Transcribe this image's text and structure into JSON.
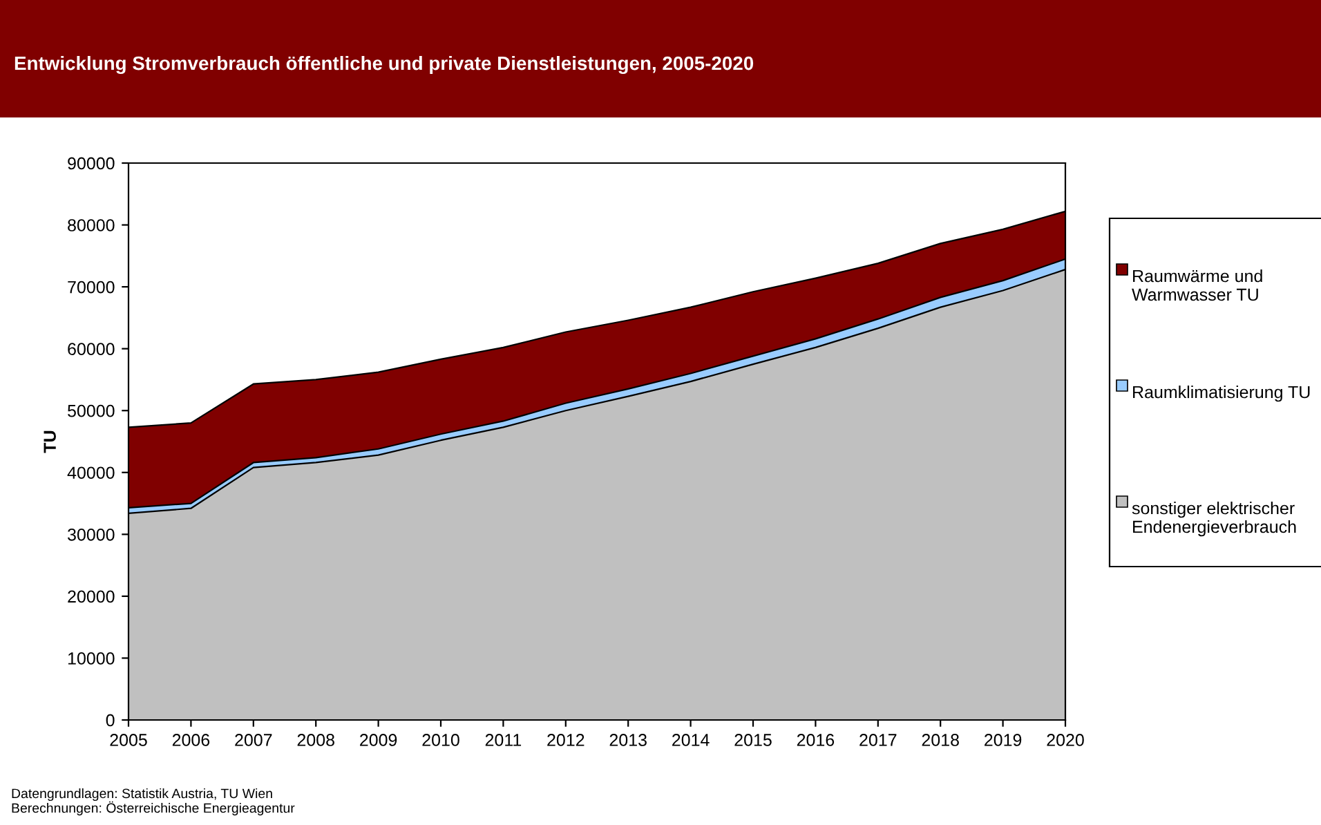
{
  "chart_data": {
    "type": "area",
    "stacked": true,
    "title": "Entwicklung Stromverbrauch öffentliche und private Dienstleistungen, 2005-2020",
    "ylabel": "TU",
    "x": [
      2005,
      2006,
      2007,
      2008,
      2009,
      2010,
      2011,
      2012,
      2013,
      2014,
      2015,
      2016,
      2017,
      2018,
      2019,
      2020
    ],
    "xlim": [
      2005,
      2020
    ],
    "xticks": [
      2005,
      2006,
      2007,
      2008,
      2009,
      2010,
      2011,
      2012,
      2013,
      2014,
      2015,
      2016,
      2017,
      2018,
      2019,
      2020
    ],
    "ylim": [
      0,
      90000
    ],
    "yticks": [
      0,
      10000,
      20000,
      30000,
      40000,
      50000,
      60000,
      70000,
      80000,
      90000
    ],
    "grid": false,
    "legend": "right",
    "series": [
      {
        "name": "sonstiger elektrischer Endenergieverbrauch",
        "color": "#c0c0c0",
        "values": [
          33400,
          34200,
          40800,
          41600,
          42800,
          45200,
          47300,
          50000,
          52300,
          54700,
          57500,
          60200,
          63300,
          66700,
          69400,
          72800
        ]
      },
      {
        "name": "Raumklimatisierung TU",
        "color": "#99ccff",
        "values": [
          900,
          800,
          800,
          800,
          1000,
          1000,
          1000,
          1200,
          1200,
          1300,
          1300,
          1400,
          1500,
          1600,
          1600,
          1700
        ]
      },
      {
        "name": "Raumwärme und Warmwasser TU",
        "color": "#800000",
        "values": [
          13000,
          13000,
          12700,
          12600,
          12400,
          12100,
          11900,
          11500,
          11100,
          10700,
          10400,
          9800,
          9000,
          8700,
          8300,
          7700
        ]
      }
    ],
    "annotations": [
      "Datengrundlagen: Statistik Austria, TU Wien",
      "Berechnungen: Österreichische Energieagentur"
    ]
  }
}
